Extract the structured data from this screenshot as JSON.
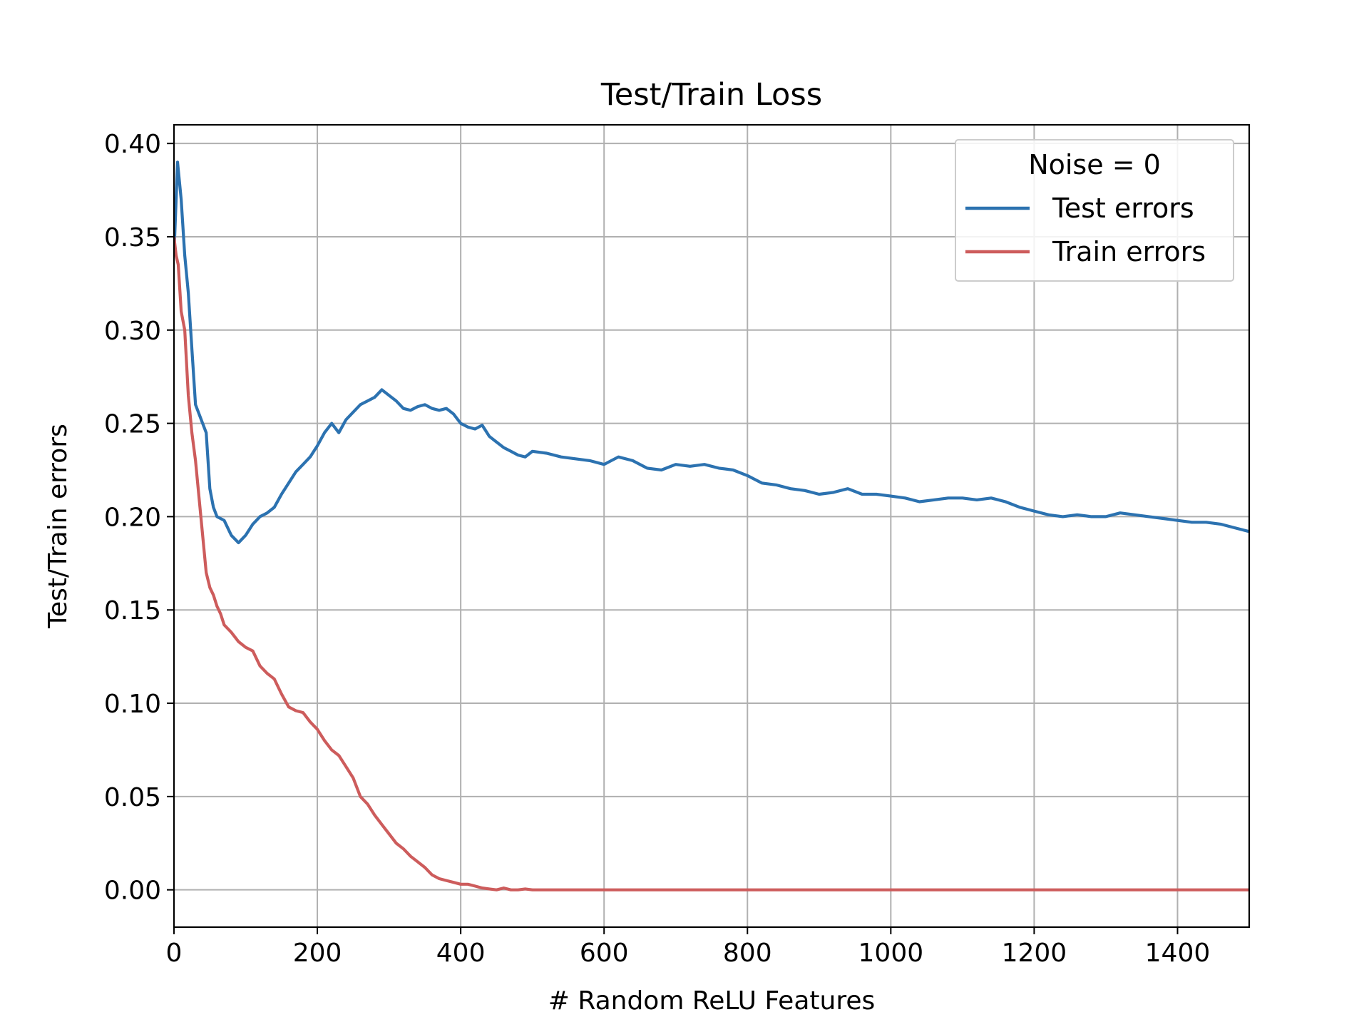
{
  "chart_data": {
    "type": "line",
    "title": "Test/Train Loss",
    "xlabel": "# Random ReLU Features",
    "ylabel": "Test/Train errors",
    "xlim": [
      0,
      1500
    ],
    "ylim": [
      -0.02,
      0.41
    ],
    "xticks": [
      0,
      200,
      400,
      600,
      800,
      1000,
      1200,
      1400
    ],
    "xtick_labels": [
      "0",
      "200",
      "400",
      "600",
      "800",
      "1000",
      "1200",
      "1400"
    ],
    "yticks": [
      0.0,
      0.05,
      0.1,
      0.15,
      0.2,
      0.25,
      0.3,
      0.35,
      0.4
    ],
    "ytick_labels": [
      "0.00",
      "0.05",
      "0.10",
      "0.15",
      "0.20",
      "0.25",
      "0.30",
      "0.35",
      "0.40"
    ],
    "grid": true,
    "legend": {
      "title": "Noise = 0",
      "placement": "top-right"
    },
    "series": [
      {
        "name": "Test errors",
        "color": "#2c72b0",
        "x": [
          0,
          5,
          10,
          15,
          20,
          25,
          30,
          35,
          40,
          45,
          50,
          55,
          60,
          70,
          80,
          90,
          100,
          110,
          120,
          130,
          140,
          150,
          160,
          170,
          180,
          190,
          200,
          210,
          220,
          230,
          240,
          250,
          260,
          270,
          280,
          290,
          300,
          310,
          320,
          330,
          340,
          350,
          360,
          370,
          380,
          390,
          400,
          410,
          420,
          430,
          440,
          450,
          460,
          470,
          480,
          490,
          500,
          520,
          540,
          560,
          580,
          600,
          620,
          640,
          660,
          680,
          700,
          720,
          740,
          760,
          780,
          800,
          820,
          840,
          860,
          880,
          900,
          920,
          940,
          960,
          980,
          1000,
          1020,
          1040,
          1060,
          1080,
          1100,
          1120,
          1140,
          1160,
          1180,
          1200,
          1220,
          1240,
          1260,
          1280,
          1300,
          1320,
          1340,
          1360,
          1380,
          1400,
          1420,
          1440,
          1460,
          1480,
          1500
        ],
        "y": [
          0.34,
          0.39,
          0.37,
          0.34,
          0.32,
          0.29,
          0.26,
          0.255,
          0.25,
          0.245,
          0.215,
          0.205,
          0.2,
          0.198,
          0.19,
          0.186,
          0.19,
          0.196,
          0.2,
          0.202,
          0.205,
          0.212,
          0.218,
          0.224,
          0.228,
          0.232,
          0.238,
          0.245,
          0.25,
          0.245,
          0.252,
          0.256,
          0.26,
          0.262,
          0.264,
          0.268,
          0.265,
          0.262,
          0.258,
          0.257,
          0.259,
          0.26,
          0.258,
          0.257,
          0.258,
          0.255,
          0.25,
          0.248,
          0.247,
          0.249,
          0.243,
          0.24,
          0.237,
          0.235,
          0.233,
          0.232,
          0.235,
          0.234,
          0.232,
          0.231,
          0.23,
          0.228,
          0.232,
          0.23,
          0.226,
          0.225,
          0.228,
          0.227,
          0.228,
          0.226,
          0.225,
          0.222,
          0.218,
          0.217,
          0.215,
          0.214,
          0.212,
          0.213,
          0.215,
          0.212,
          0.212,
          0.211,
          0.21,
          0.208,
          0.209,
          0.21,
          0.21,
          0.209,
          0.21,
          0.208,
          0.205,
          0.203,
          0.201,
          0.2,
          0.201,
          0.2,
          0.2,
          0.202,
          0.201,
          0.2,
          0.199,
          0.198,
          0.197,
          0.197,
          0.196,
          0.194,
          0.192
        ]
      },
      {
        "name": "Train errors",
        "color": "#cd5c5c",
        "x": [
          0,
          3,
          6,
          10,
          15,
          20,
          25,
          30,
          35,
          40,
          45,
          50,
          55,
          60,
          65,
          70,
          80,
          90,
          100,
          110,
          120,
          130,
          140,
          150,
          160,
          170,
          180,
          190,
          200,
          210,
          220,
          230,
          240,
          250,
          260,
          270,
          280,
          290,
          300,
          310,
          320,
          330,
          340,
          350,
          360,
          370,
          380,
          390,
          400,
          410,
          420,
          430,
          440,
          450,
          460,
          470,
          480,
          490,
          500,
          550,
          600,
          700,
          800,
          900,
          1000,
          1100,
          1200,
          1300,
          1400,
          1500
        ],
        "y": [
          0.35,
          0.34,
          0.335,
          0.31,
          0.3,
          0.265,
          0.245,
          0.23,
          0.21,
          0.19,
          0.17,
          0.162,
          0.158,
          0.152,
          0.148,
          0.142,
          0.138,
          0.133,
          0.13,
          0.128,
          0.12,
          0.116,
          0.113,
          0.105,
          0.098,
          0.096,
          0.095,
          0.09,
          0.086,
          0.08,
          0.075,
          0.072,
          0.066,
          0.06,
          0.05,
          0.046,
          0.04,
          0.035,
          0.03,
          0.025,
          0.022,
          0.018,
          0.015,
          0.012,
          0.008,
          0.006,
          0.005,
          0.004,
          0.003,
          0.003,
          0.002,
          0.001,
          0.0005,
          0.0,
          0.001,
          0.0,
          0.0,
          0.0005,
          0.0,
          0.0,
          0.0,
          0.0,
          0.0,
          0.0,
          0.0,
          0.0,
          0.0,
          0.0,
          0.0,
          0.0
        ]
      }
    ]
  }
}
